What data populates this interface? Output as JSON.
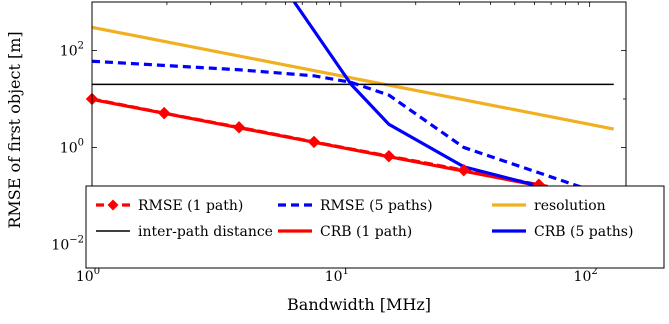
{
  "chart_data": {
    "type": "line",
    "xlabel": "Bandwidth [MHz]",
    "ylabel": "RMSE of first object [m]",
    "xscale": "log",
    "yscale": "log",
    "xlim": [
      1,
      140
    ],
    "ylim": [
      0.005,
      1000
    ],
    "xticks": [
      {
        "base": "10",
        "exp": "0",
        "value": 1
      },
      {
        "base": "10",
        "exp": "1",
        "value": 10
      },
      {
        "base": "10",
        "exp": "2",
        "value": 100
      }
    ],
    "yticks": [
      {
        "base": "10",
        "exp": "−2",
        "value": 0.01
      },
      {
        "base": "10",
        "exp": "0",
        "value": 1
      },
      {
        "base": "10",
        "exp": "2",
        "value": 100
      }
    ],
    "legend_position": "bottom",
    "series": [
      {
        "key": "rmse1",
        "name": "RMSE (1 path)",
        "color": "#ff0000",
        "style": "dashed",
        "marker": "diamond",
        "x": [
          1,
          1.95,
          3.9,
          7.8,
          15.6,
          31.2,
          62.5,
          125
        ],
        "y": [
          10,
          5.1,
          2.6,
          1.3,
          0.66,
          0.34,
          0.17,
          0.085
        ]
      },
      {
        "key": "rmse5",
        "name": "RMSE (5 paths)",
        "color": "#0000ff",
        "style": "dashed",
        "marker": "none",
        "x": [
          1,
          3.9,
          7.8,
          11,
          15.6,
          31.2,
          62.5,
          125
        ],
        "y": [
          60,
          40,
          30,
          22,
          12,
          1.0,
          0.3,
          0.09
        ]
      },
      {
        "key": "resolution",
        "name": "resolution",
        "color": "#f0b020",
        "style": "solid",
        "marker": "none",
        "x": [
          1,
          125
        ],
        "y": [
          300,
          2.4
        ]
      },
      {
        "key": "interpath",
        "name": "inter-path distance",
        "color": "#000000",
        "style": "solid",
        "marker": "none",
        "x": [
          1,
          125
        ],
        "y": [
          20,
          20
        ]
      },
      {
        "key": "crb1",
        "name": "CRB (1 path)",
        "color": "#ff0000",
        "style": "solid",
        "marker": "none",
        "x": [
          1,
          125
        ],
        "y": [
          9.8,
          0.082
        ]
      },
      {
        "key": "crb5",
        "name": "CRB (5 paths)",
        "color": "#0000ff",
        "style": "solid",
        "marker": "none",
        "x": [
          6.5,
          11,
          15.6,
          31.2,
          62.5,
          125
        ],
        "y": [
          1000,
          20,
          3.0,
          0.4,
          0.16,
          0.08
        ]
      }
    ],
    "legend_rows": [
      [
        "rmse1",
        "rmse5",
        "resolution"
      ],
      [
        "interpath",
        "crb1",
        "crb5"
      ]
    ]
  }
}
